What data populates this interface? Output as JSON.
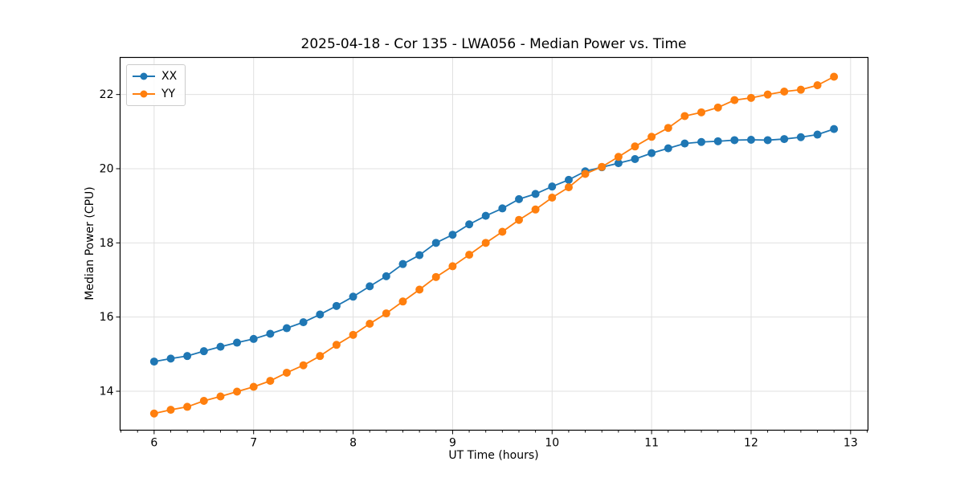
{
  "chart_data": {
    "type": "line",
    "title": "2025-04-18 - Cor 135 - LWA056 - Median Power vs. Time",
    "xlabel": "UT Time (hours)",
    "ylabel": "Median Power (CPU)",
    "xlim": [
      5.658,
      13.175
    ],
    "ylim": [
      12.95,
      23.0
    ],
    "xticks": [
      6,
      7,
      8,
      9,
      10,
      11,
      12,
      13
    ],
    "yticks": [
      14,
      16,
      18,
      20,
      22
    ],
    "x_minor_step": 0.166667,
    "grid": true,
    "legend_position": "upper-left",
    "colors": {
      "background": "#ffffff",
      "grid": "#e0e0e0",
      "spine": "#000000",
      "tick": "#000000"
    },
    "x": [
      6.0,
      6.167,
      6.333,
      6.5,
      6.667,
      6.833,
      7.0,
      7.167,
      7.333,
      7.5,
      7.667,
      7.833,
      8.0,
      8.167,
      8.333,
      8.5,
      8.667,
      8.833,
      9.0,
      9.167,
      9.333,
      9.5,
      9.667,
      9.833,
      10.0,
      10.167,
      10.333,
      10.5,
      10.667,
      10.833,
      11.0,
      11.167,
      11.333,
      11.5,
      11.667,
      11.833,
      12.0,
      12.167,
      12.333,
      12.5,
      12.667,
      12.833
    ],
    "series": [
      {
        "name": "XX",
        "color": "#1f77b4",
        "values": [
          14.8,
          14.88,
          14.95,
          15.08,
          15.2,
          15.31,
          15.41,
          15.55,
          15.7,
          15.86,
          16.07,
          16.3,
          16.55,
          16.83,
          17.1,
          17.43,
          17.67,
          18.0,
          18.22,
          18.5,
          18.73,
          18.93,
          19.18,
          19.32,
          19.52,
          19.7,
          19.93,
          20.04,
          20.15,
          20.26,
          20.42,
          20.55,
          20.68,
          20.72,
          20.74,
          20.77,
          20.78,
          20.77,
          20.8,
          20.85,
          20.92,
          21.07
        ]
      },
      {
        "name": "YY",
        "color": "#ff7f0e",
        "values": [
          13.4,
          13.5,
          13.58,
          13.74,
          13.86,
          13.99,
          14.12,
          14.28,
          14.5,
          14.7,
          14.95,
          15.25,
          15.52,
          15.82,
          16.1,
          16.42,
          16.74,
          17.08,
          17.37,
          17.68,
          18.0,
          18.3,
          18.62,
          18.9,
          19.22,
          19.5,
          19.86,
          20.05,
          20.32,
          20.6,
          20.86,
          21.1,
          21.42,
          21.52,
          21.65,
          21.85,
          21.91,
          22.0,
          22.08,
          22.13,
          22.25,
          22.48
        ]
      }
    ]
  }
}
